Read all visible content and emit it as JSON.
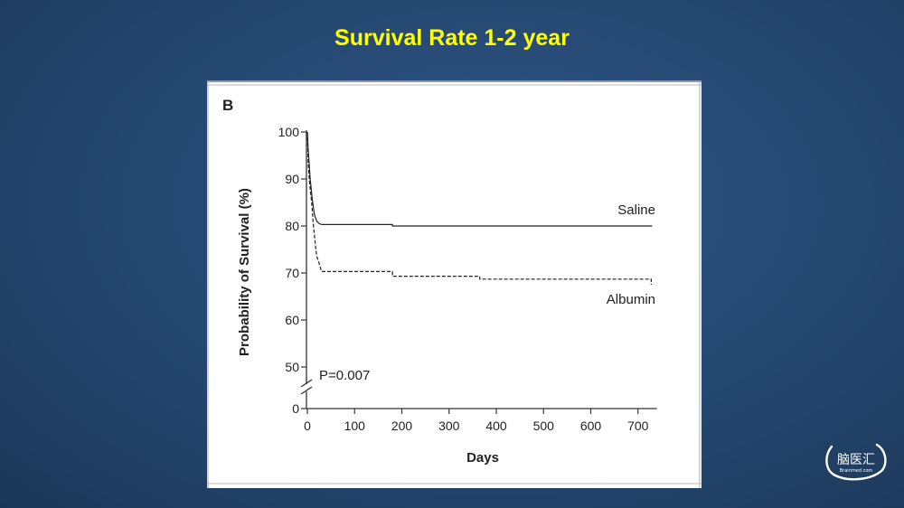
{
  "slide": {
    "title": "Survival Rate 1-2 year"
  },
  "figure": {
    "panel_label": "B",
    "p_value": "P=0.007"
  },
  "chart_data": {
    "type": "line",
    "ylabel": "Probability of Survival (%)",
    "xlabel": "Days",
    "x_ticks": [
      0,
      100,
      200,
      300,
      400,
      500,
      600,
      700
    ],
    "y_ticks": [
      0,
      50,
      60,
      70,
      80,
      90,
      100
    ],
    "xlim": [
      0,
      740
    ],
    "ylim": [
      0,
      100
    ],
    "y_axis_break": "between 0 and 50",
    "grid": false,
    "series": [
      {
        "name": "Saline",
        "style": "solid",
        "color": "#222222",
        "points": [
          [
            0,
            100
          ],
          [
            2,
            96
          ],
          [
            4,
            93
          ],
          [
            6,
            90
          ],
          [
            8,
            88
          ],
          [
            10,
            86
          ],
          [
            12,
            84.5
          ],
          [
            14,
            83
          ],
          [
            16,
            82
          ],
          [
            20,
            81
          ],
          [
            25,
            80.5
          ],
          [
            30,
            80.3
          ],
          [
            180,
            80.3
          ],
          [
            180,
            80
          ],
          [
            730,
            80
          ]
        ]
      },
      {
        "name": "Albumin",
        "style": "dashed",
        "color": "#222222",
        "points": [
          [
            0,
            100
          ],
          [
            2,
            93
          ],
          [
            4,
            90
          ],
          [
            6,
            88
          ],
          [
            8,
            86
          ],
          [
            10,
            84
          ],
          [
            12,
            81
          ],
          [
            14,
            79
          ],
          [
            16,
            77
          ],
          [
            18,
            75
          ],
          [
            20,
            73.5
          ],
          [
            25,
            72
          ],
          [
            30,
            70.3
          ],
          [
            180,
            70.3
          ],
          [
            180,
            69.3
          ],
          [
            365,
            69.3
          ],
          [
            365,
            68.7
          ],
          [
            728,
            68.7
          ],
          [
            728,
            67.5
          ]
        ]
      }
    ]
  },
  "logo": {
    "text": "脑医汇",
    "subtext": "Brainmed.com"
  }
}
